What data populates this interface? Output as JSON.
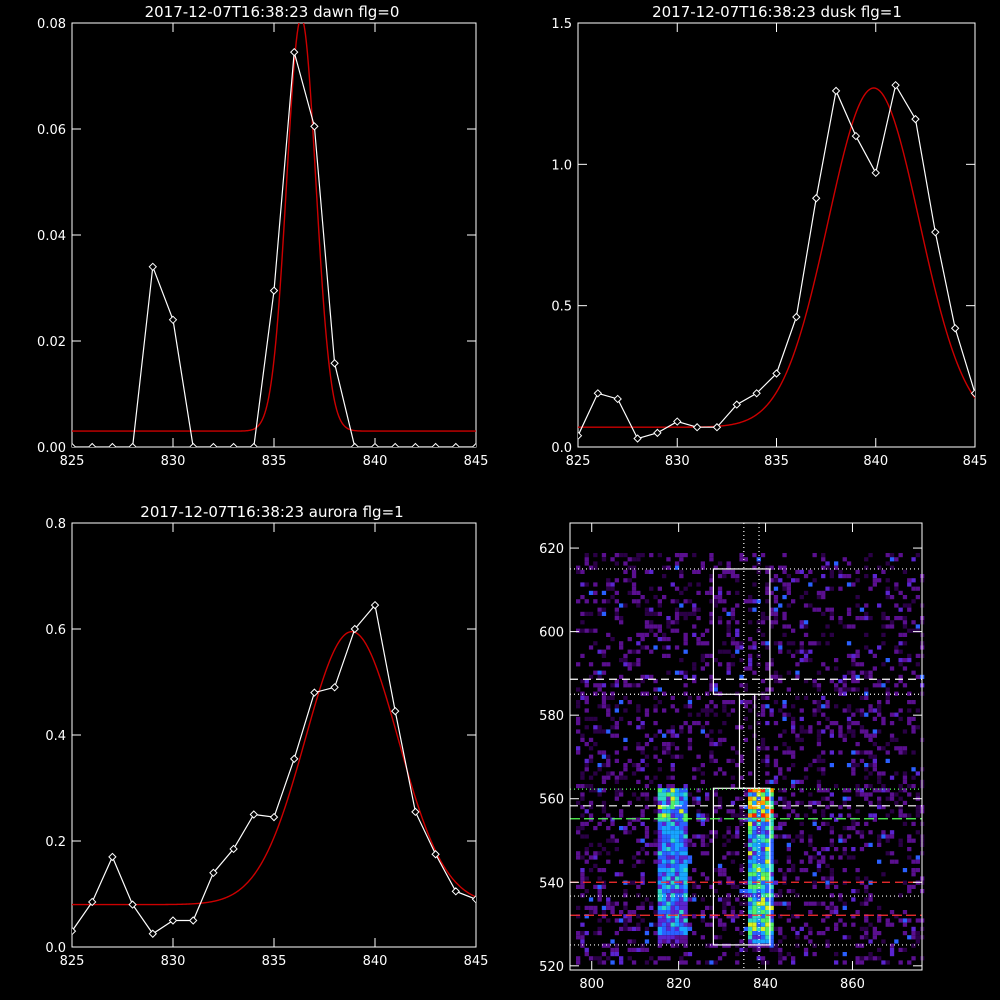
{
  "colors": {
    "background": "#000000",
    "axis": "#ffffff",
    "observed": "#ffffff",
    "fit": "#cc0000"
  },
  "chart_data": [
    {
      "id": "dawn",
      "type": "line",
      "title": "2017-12-07T16:38:23 dawn flg=0",
      "xlim": [
        825,
        845
      ],
      "ylim": [
        0,
        0.08
      ],
      "xticks": [
        825,
        830,
        835,
        840,
        845
      ],
      "xtick_labels": [
        "825",
        "830",
        "835",
        "840",
        "845"
      ],
      "yticks": [
        0,
        0.02,
        0.04,
        0.06,
        0.08
      ],
      "ytick_labels": [
        "0.00",
        "0.02",
        "0.04",
        "0.06",
        "0.08"
      ],
      "series": [
        {
          "style": "white-line-diamonds",
          "x": [
            825,
            826,
            827,
            828,
            829,
            830,
            831,
            832,
            833,
            834,
            835,
            836,
            837,
            838,
            839,
            840,
            841,
            842,
            843,
            844,
            845
          ],
          "y": [
            0,
            0,
            0,
            0,
            0.034,
            0.024,
            0,
            0,
            0,
            0,
            0.0295,
            0.0745,
            0.0605,
            0.0158,
            0,
            0,
            0,
            0,
            0,
            0,
            0
          ]
        },
        {
          "style": "red-gaussian-fit",
          "fit": {
            "baseline": 0.003,
            "amplitude": 0.078,
            "center": 836.35,
            "sigma": 0.72
          }
        }
      ]
    },
    {
      "id": "dusk",
      "type": "line",
      "title": "2017-12-07T16:38:23 dusk flg=1",
      "xlim": [
        825,
        845
      ],
      "ylim": [
        0,
        1.5
      ],
      "xticks": [
        825,
        830,
        835,
        840,
        845
      ],
      "xtick_labels": [
        "825",
        "830",
        "835",
        "840",
        "845"
      ],
      "yticks": [
        0,
        0.5,
        1.0,
        1.5
      ],
      "ytick_labels": [
        "0.0",
        "0.5",
        "1.0",
        "1.5"
      ],
      "series": [
        {
          "style": "white-line-diamonds",
          "x": [
            825,
            826,
            827,
            828,
            829,
            830,
            831,
            832,
            833,
            834,
            835,
            836,
            837,
            838,
            839,
            840,
            841,
            842,
            843,
            844,
            845
          ],
          "y": [
            0.04,
            0.19,
            0.17,
            0.03,
            0.05,
            0.09,
            0.07,
            0.07,
            0.15,
            0.19,
            0.26,
            0.46,
            0.88,
            1.26,
            1.1,
            0.97,
            1.28,
            1.16,
            0.76,
            0.42,
            0.19
          ]
        },
        {
          "style": "red-gaussian-fit",
          "fit": {
            "baseline": 0.07,
            "amplitude": 1.2,
            "center": 839.9,
            "sigma": 2.3
          }
        }
      ]
    },
    {
      "id": "aurora",
      "type": "line",
      "title": "2017-12-07T16:38:23 aurora flg=1",
      "xlim": [
        825,
        845
      ],
      "ylim": [
        0,
        0.8
      ],
      "xticks": [
        825,
        830,
        835,
        840,
        845
      ],
      "xtick_labels": [
        "825",
        "830",
        "835",
        "840",
        "845"
      ],
      "yticks": [
        0,
        0.2,
        0.4,
        0.6,
        0.8
      ],
      "ytick_labels": [
        "0.0",
        "0.2",
        "0.4",
        "0.6",
        "0.8"
      ],
      "series": [
        {
          "style": "white-line-diamonds",
          "x": [
            825,
            826,
            827,
            828,
            829,
            830,
            831,
            832,
            833,
            834,
            835,
            836,
            837,
            838,
            839,
            840,
            841,
            842,
            843,
            844,
            845
          ],
          "y": [
            0.03,
            0.085,
            0.17,
            0.08,
            0.025,
            0.05,
            0.05,
            0.14,
            0.185,
            0.25,
            0.245,
            0.355,
            0.48,
            0.49,
            0.6,
            0.645,
            0.445,
            0.255,
            0.175,
            0.105,
            0.09
          ]
        },
        {
          "style": "red-gaussian-fit",
          "fit": {
            "baseline": 0.08,
            "amplitude": 0.515,
            "center": 838.85,
            "sigma": 2.3
          }
        }
      ]
    },
    {
      "id": "image",
      "type": "heatmap",
      "title": "",
      "xlim": [
        795,
        876
      ],
      "ylim": [
        519,
        626
      ],
      "xticks": [
        800,
        820,
        840,
        860
      ],
      "xtick_labels": [
        "800",
        "820",
        "840",
        "860"
      ],
      "yticks": [
        520,
        540,
        560,
        580,
        600,
        620
      ],
      "ytick_labels": [
        "520",
        "540",
        "560",
        "580",
        "600",
        "620"
      ],
      "colormap": [
        "#2a0046",
        "#5a0f8f",
        "#5a24d0",
        "#2a60ff",
        "#18a4ff",
        "#2ed8c4",
        "#55f064",
        "#d8f020",
        "#ff9a00",
        "#ff2000"
      ],
      "bright_columns": [
        {
          "x0": 815,
          "x1": 822,
          "y0": 526,
          "y1": 563,
          "peak": 0.75
        },
        {
          "x0": 835,
          "x1": 841,
          "y0": 525,
          "y1": 563,
          "peak": 1.0
        }
      ],
      "boxes": [
        {
          "x0": 828,
          "x1": 841,
          "y0": 525,
          "y1": 562.5
        },
        {
          "x0": 828,
          "x1": 841,
          "y0": 585,
          "y1": 615
        }
      ],
      "connector": {
        "x0": 834,
        "x1": 837.5,
        "y0": 562.5,
        "y1": 585
      },
      "hlines": [
        {
          "y": 615,
          "color": "#ffffff",
          "dash": "1,3"
        },
        {
          "y": 588.6,
          "color": "#ffffff",
          "dash": "8,5"
        },
        {
          "y": 585,
          "color": "#ffffff",
          "dash": "1,3"
        },
        {
          "y": 562.3,
          "color": "#55ff55",
          "dash": "1,3"
        },
        {
          "y": 558.3,
          "color": "#ffffff",
          "dash": "8,5"
        },
        {
          "y": 555.2,
          "color": "#55ff55",
          "dash": "10,4"
        },
        {
          "y": 540,
          "color": "#ff3030",
          "dash": "8,5"
        },
        {
          "y": 536.7,
          "color": "#ffffff",
          "dash": "1,3"
        },
        {
          "y": 532.1,
          "color": "#ff3030",
          "dash": "10,4"
        },
        {
          "y": 525,
          "color": "#ffffff",
          "dash": "1,3"
        }
      ],
      "vlines": [
        {
          "x": 835,
          "color": "#ffffff",
          "dash": "1,3"
        },
        {
          "x": 838.5,
          "color": "#ffffff",
          "dash": "1,3"
        }
      ]
    }
  ]
}
